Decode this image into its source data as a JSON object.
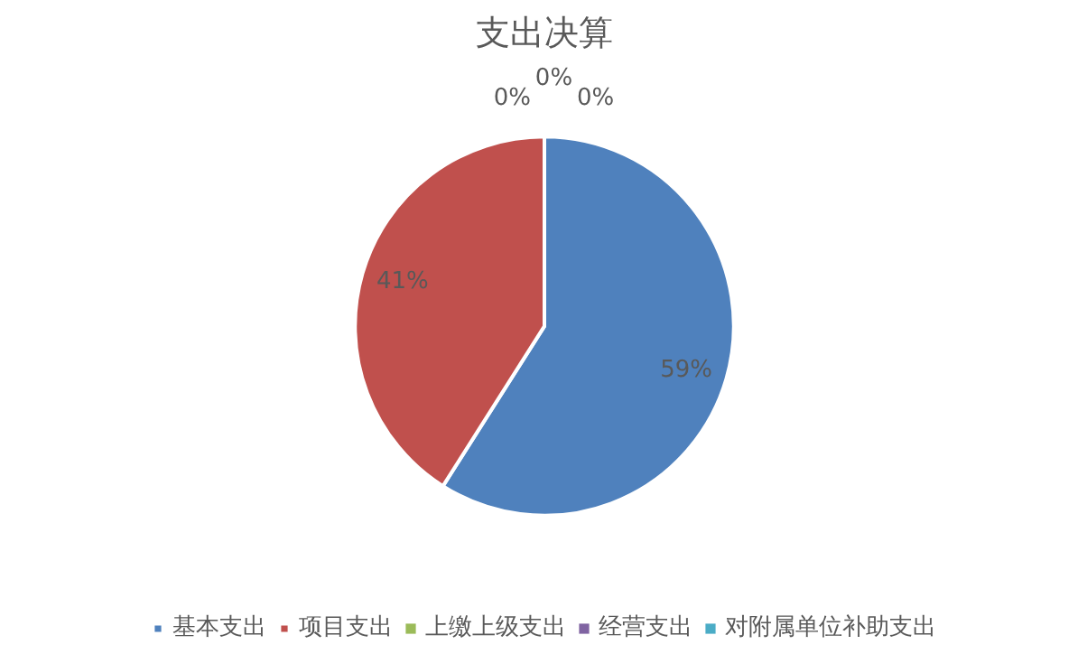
{
  "chart_data": {
    "type": "pie",
    "title": "支出决算",
    "categories": [
      "基本支出",
      "项目支出",
      "上缴上级支出",
      "经营支出",
      "对附属单位补助支出"
    ],
    "values": [
      59,
      41,
      0,
      0,
      0
    ],
    "colors": [
      "#4f81bd",
      "#c0504d",
      "#9bbb59",
      "#8064a2",
      "#4bacc6"
    ],
    "value_labels": [
      "59%",
      "41%",
      "0%",
      "0%",
      "0%"
    ],
    "legend": "bottom"
  }
}
